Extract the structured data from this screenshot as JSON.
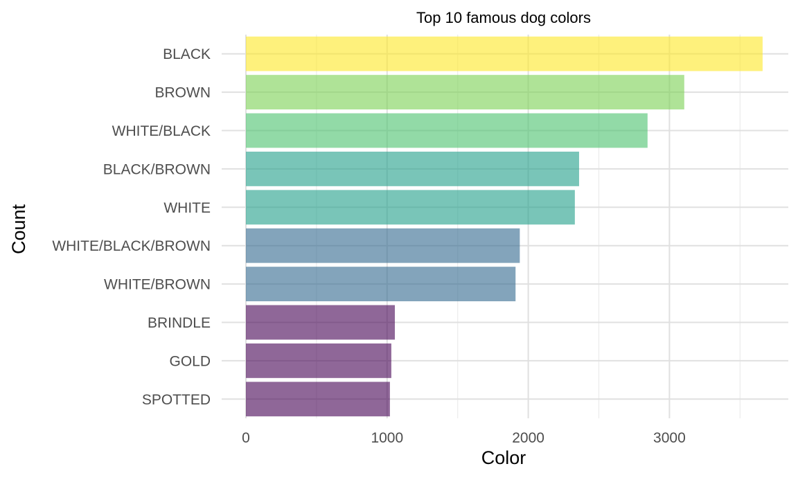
{
  "chart_data": {
    "type": "bar",
    "orientation": "horizontal",
    "title": "Top 10 famous dog colors",
    "xlabel": "Color",
    "ylabel": "Count",
    "categories": [
      "BLACK",
      "BROWN",
      "WHITE/BLACK",
      "BLACK/BROWN",
      "WHITE",
      "WHITE/BLACK/BROWN",
      "WHITE/BROWN",
      "BRINDLE",
      "GOLD",
      "SPOTTED"
    ],
    "values": [
      3660,
      3105,
      2845,
      2360,
      2330,
      1940,
      1910,
      1055,
      1030,
      1020
    ],
    "colors": [
      "#fde725",
      "#7ad151",
      "#4ac16d",
      "#1f9e89",
      "#1f9e89",
      "#31688e",
      "#31688e",
      "#440154",
      "#440154",
      "#440154"
    ],
    "bar_opacity": 0.6,
    "xlim": [
      0,
      3850
    ],
    "xticks": [
      0,
      1000,
      2000,
      3000
    ],
    "xtick_labels": [
      "0",
      "1000",
      "2000",
      "3000"
    ],
    "grid": true,
    "legend": false
  }
}
